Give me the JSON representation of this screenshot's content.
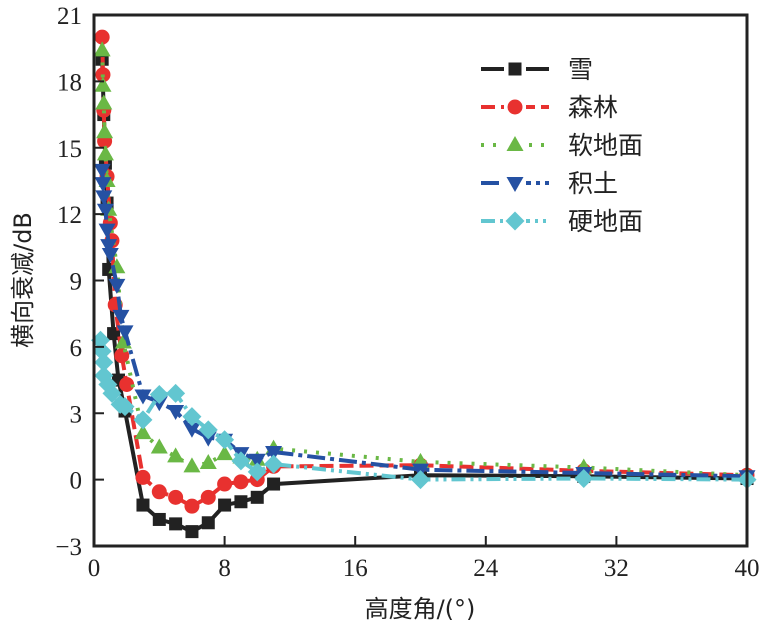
{
  "chart_data": {
    "type": "line",
    "title": "",
    "xlabel": "高度角/(°)",
    "ylabel": "横向衰减/dB",
    "xlim": [
      0,
      40
    ],
    "ylim": [
      -3,
      21
    ],
    "xticks": [
      0,
      8,
      16,
      24,
      32,
      40
    ],
    "yticks": [
      -3,
      0,
      3,
      6,
      9,
      12,
      15,
      18,
      21
    ],
    "xtick_labels": [
      "0",
      "8",
      "16",
      "24",
      "32",
      "40"
    ],
    "ytick_labels": [
      "−3",
      "0",
      "3",
      "6",
      "9",
      "12",
      "15",
      "18",
      "21"
    ],
    "grid": false,
    "legend_position": "top-right",
    "series": [
      {
        "name": "雪",
        "color": "#222222",
        "marker": "square",
        "line_style": "solid",
        "points": [
          [
            0.5,
            19.0
          ],
          [
            0.6,
            16.5
          ],
          [
            0.7,
            14.3
          ],
          [
            0.8,
            12.5
          ],
          [
            0.9,
            9.5
          ],
          [
            1.2,
            6.6
          ],
          [
            1.5,
            4.5
          ],
          [
            1.9,
            3.1
          ],
          [
            3,
            -1.15
          ],
          [
            4,
            -1.8
          ],
          [
            5,
            -2.0
          ],
          [
            6,
            -2.35
          ],
          [
            7,
            -1.95
          ],
          [
            8,
            -1.15
          ],
          [
            9,
            -1.0
          ],
          [
            10,
            -0.8
          ],
          [
            11,
            -0.2
          ],
          [
            20,
            0.2
          ],
          [
            30,
            0.15
          ],
          [
            40,
            0.05
          ]
        ]
      },
      {
        "name": "森林",
        "color": "#e8312f",
        "marker": "circle",
        "line_style": "dash",
        "points": [
          [
            0.5,
            20.0
          ],
          [
            0.55,
            18.3
          ],
          [
            0.6,
            16.7
          ],
          [
            0.65,
            15.3
          ],
          [
            0.8,
            13.7
          ],
          [
            1.0,
            11.6
          ],
          [
            1.1,
            10.8
          ],
          [
            1.3,
            7.9
          ],
          [
            1.7,
            5.6
          ],
          [
            2.0,
            4.3
          ],
          [
            3,
            0.1
          ],
          [
            4,
            -0.55
          ],
          [
            5,
            -0.8
          ],
          [
            6,
            -1.2
          ],
          [
            7,
            -0.8
          ],
          [
            8,
            -0.2
          ],
          [
            9,
            -0.1
          ],
          [
            10,
            0.0
          ],
          [
            11,
            0.6
          ],
          [
            20,
            0.65
          ],
          [
            30,
            0.4
          ],
          [
            40,
            0.2
          ]
        ]
      },
      {
        "name": "软地面",
        "color": "#6ab845",
        "marker": "triangle-up",
        "line_style": "dot",
        "points": [
          [
            0.5,
            19.4
          ],
          [
            0.55,
            17.8
          ],
          [
            0.6,
            17.0
          ],
          [
            0.65,
            15.7
          ],
          [
            0.7,
            14.7
          ],
          [
            0.8,
            13.5
          ],
          [
            0.9,
            12.2
          ],
          [
            1.4,
            9.6
          ],
          [
            1.8,
            6.2
          ],
          [
            3,
            2.1
          ],
          [
            4,
            1.45
          ],
          [
            5,
            1.05
          ],
          [
            6,
            0.6
          ],
          [
            7,
            0.75
          ],
          [
            8,
            1.15
          ],
          [
            9,
            1.0
          ],
          [
            10,
            0.9
          ],
          [
            11,
            1.4
          ],
          [
            20,
            0.8
          ],
          [
            30,
            0.55
          ],
          [
            40,
            0.2
          ]
        ]
      },
      {
        "name": "积土",
        "color": "#2551a3",
        "marker": "triangle-down",
        "line_style": "dashdot",
        "points": [
          [
            0.5,
            14.0
          ],
          [
            0.55,
            13.4
          ],
          [
            0.6,
            12.8
          ],
          [
            0.7,
            12.2
          ],
          [
            0.8,
            11.3
          ],
          [
            0.9,
            10.6
          ],
          [
            1.0,
            10.2
          ],
          [
            1.4,
            8.8
          ],
          [
            1.65,
            7.4
          ],
          [
            1.9,
            6.7
          ],
          [
            3,
            3.8
          ],
          [
            4,
            3.5
          ],
          [
            5,
            3.1
          ],
          [
            6,
            2.3
          ],
          [
            7,
            1.9
          ],
          [
            8,
            1.8
          ],
          [
            9,
            1.2
          ],
          [
            10,
            0.9
          ],
          [
            11,
            1.25
          ],
          [
            20,
            0.45
          ],
          [
            30,
            0.3
          ],
          [
            40,
            0.15
          ]
        ]
      },
      {
        "name": "硬地面",
        "color": "#62c6d0",
        "marker": "diamond",
        "line_style": "dashdotdot",
        "points": [
          [
            0.4,
            6.3
          ],
          [
            0.5,
            5.8
          ],
          [
            0.6,
            5.3
          ],
          [
            0.6,
            4.7
          ],
          [
            0.85,
            4.3
          ],
          [
            1.1,
            3.9
          ],
          [
            1.6,
            3.4
          ],
          [
            1.9,
            3.3
          ],
          [
            3,
            2.7
          ],
          [
            4,
            3.85
          ],
          [
            5,
            3.9
          ],
          [
            6,
            2.85
          ],
          [
            7,
            2.25
          ],
          [
            8,
            1.8
          ],
          [
            9,
            0.85
          ],
          [
            10,
            0.35
          ],
          [
            11,
            0.7
          ],
          [
            20,
            0.0
          ],
          [
            30,
            0.05
          ],
          [
            40,
            0.0
          ]
        ]
      }
    ]
  }
}
